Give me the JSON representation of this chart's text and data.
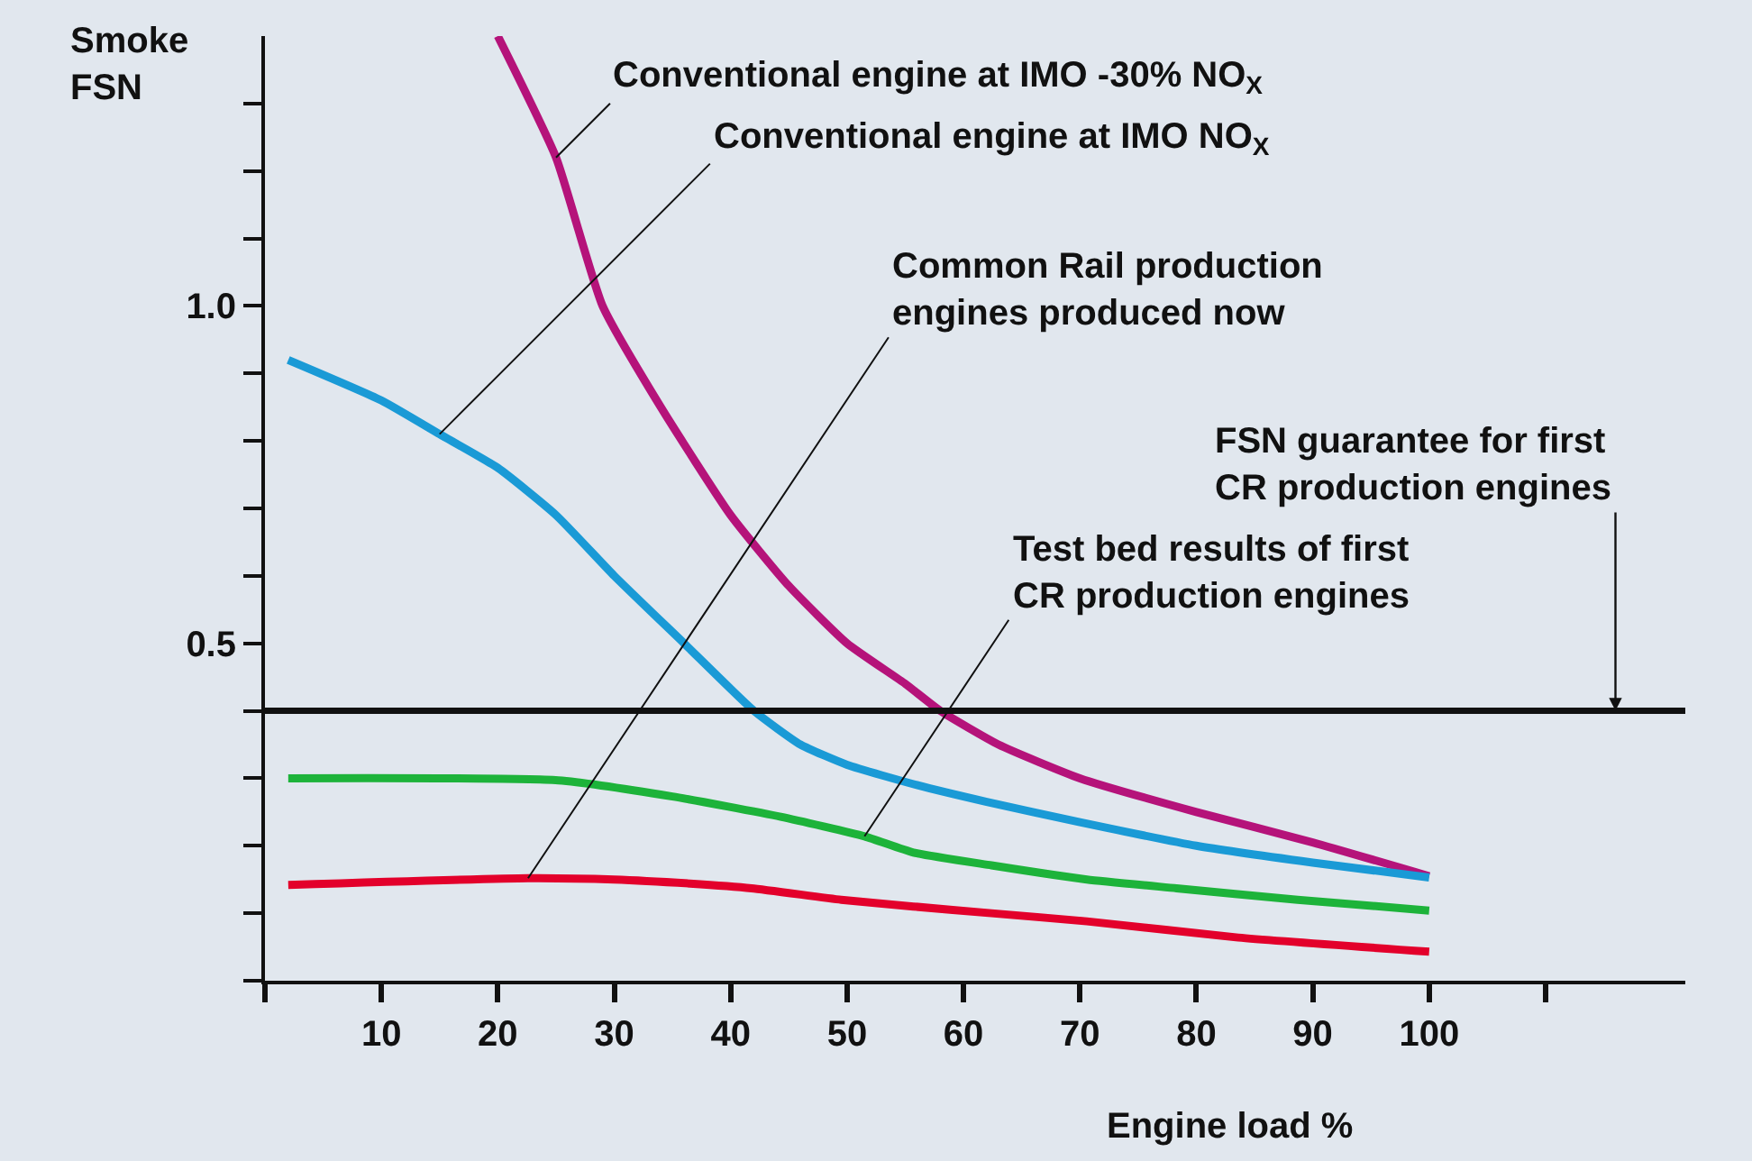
{
  "chart_data": {
    "type": "line",
    "ylabel": "Smoke\nFSN",
    "xlabel": "Engine load %",
    "xlim": [
      0,
      122
    ],
    "ylim": [
      0,
      1.4
    ],
    "xticks": [
      {
        "value": 0,
        "label": null
      },
      10,
      20,
      30,
      40,
      50,
      60,
      70,
      80,
      90,
      100,
      {
        "value": 110,
        "label": null
      }
    ],
    "yticks": [
      {
        "value": 0,
        "label": null
      },
      {
        "value": 0.1,
        "label": null
      },
      {
        "value": 0.2,
        "label": null
      },
      {
        "value": 0.3,
        "label": null
      },
      {
        "value": 0.4,
        "label": null
      },
      {
        "value": 0.5,
        "label": "0.5"
      },
      {
        "value": 0.6,
        "label": null
      },
      {
        "value": 0.7,
        "label": null
      },
      {
        "value": 0.8,
        "label": null
      },
      {
        "value": 0.9,
        "label": null
      },
      {
        "value": 1.0,
        "label": "1.0"
      },
      {
        "value": 1.1,
        "label": null
      },
      {
        "value": 1.2,
        "label": null
      },
      {
        "value": 1.3,
        "label": null
      }
    ],
    "series": [
      {
        "name": "Conventional engine at IMO -30% NO$_{X}$",
        "color": "#b5137a",
        "x": [
          20,
          25,
          29,
          34,
          40,
          45,
          50,
          55,
          58,
          63,
          70,
          80,
          90,
          100
        ],
        "values": [
          1.4,
          1.22,
          1.0,
          0.85,
          0.69,
          0.585,
          0.5,
          0.44,
          0.4,
          0.35,
          0.3,
          0.25,
          0.205,
          0.155
        ]
      },
      {
        "name": "Conventional engine at IMO NO$_{X}$",
        "color": "#1a9ad6",
        "x": [
          2,
          10,
          15,
          20,
          25,
          30,
          36,
          42,
          46,
          50,
          56,
          62,
          70,
          80,
          90,
          100
        ],
        "values": [
          0.92,
          0.86,
          0.81,
          0.76,
          0.69,
          0.6,
          0.5,
          0.4,
          0.35,
          0.32,
          0.29,
          0.265,
          0.235,
          0.2,
          0.175,
          0.153
        ]
      },
      {
        "name": "Common Rail production\nengines produced now",
        "color": "#e3002b",
        "x": [
          2,
          22.6,
          30,
          36.5,
          41.8,
          49.5,
          55.7,
          62.4,
          70.6,
          83.6,
          100
        ],
        "values": [
          0.142,
          0.152,
          0.15,
          0.144,
          0.137,
          0.12,
          0.11,
          0.1,
          0.088,
          0.064,
          0.043
        ]
      },
      {
        "name": "Test bed results of first\nCR production engines",
        "color": "#1db33a",
        "x": [
          2,
          25.2,
          35,
          44.3,
          51.5,
          55.7,
          62.4,
          70.6,
          78.3,
          88.7,
          100
        ],
        "values": [
          0.3,
          0.297,
          0.273,
          0.243,
          0.214,
          0.19,
          0.171,
          0.15,
          0.137,
          0.12,
          0.104
        ]
      }
    ],
    "ref_lines": [
      {
        "axis": "y",
        "value": 0.4,
        "color": "#111111"
      }
    ],
    "annotations": [
      {
        "text": "FSN guarantee for first\nCR production engines",
        "x": 116,
        "y": 0.4
      }
    ],
    "legend": false,
    "grid": false,
    "marker": "none",
    "line_style": "solid"
  }
}
